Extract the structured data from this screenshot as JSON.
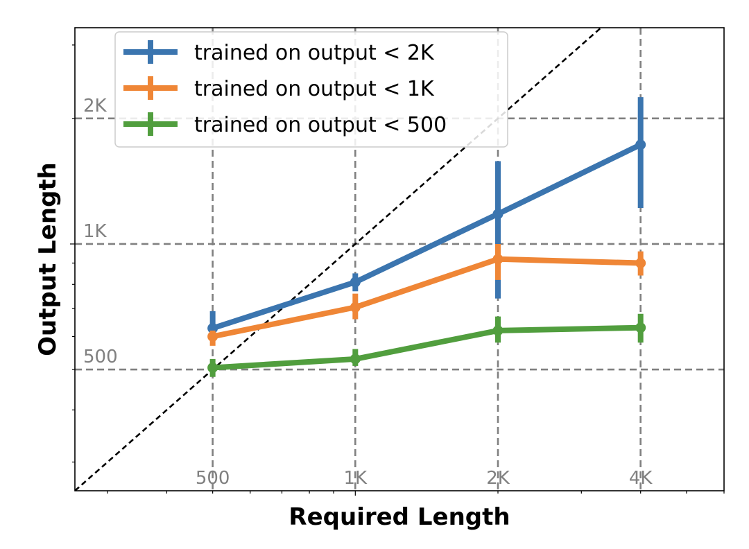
{
  "chart_data": {
    "type": "line",
    "xlabel": "Required Length",
    "ylabel": "Output Length",
    "x_scale": "log",
    "y_scale": "log",
    "xlim": [
      256,
      6000
    ],
    "ylim": [
      256,
      3300
    ],
    "grid": false,
    "legend_position": "top-left",
    "reference_lines": {
      "vertical": [
        {
          "value": 500,
          "label": "500"
        },
        {
          "value": 1000,
          "label": "1K"
        },
        {
          "value": 2000,
          "label": "2K"
        },
        {
          "value": 4000,
          "label": "4K"
        }
      ],
      "horizontal": [
        {
          "value": 500,
          "label": "500"
        },
        {
          "value": 1000,
          "label": "1K"
        },
        {
          "value": 2000,
          "label": "2K"
        }
      ],
      "diagonal": "y = x"
    },
    "x": [
      500,
      1000,
      2000,
      4000
    ],
    "series": [
      {
        "name": "trained on output < 2K",
        "color": "#3b75af",
        "values": [
          628,
          810,
          1180,
          1730
        ],
        "err_low": [
          590,
          770,
          740,
          1220
        ],
        "err_high": [
          690,
          850,
          1580,
          2250
        ]
      },
      {
        "name": "trained on output < 1K",
        "color": "#ef8636",
        "values": [
          600,
          705,
          920,
          900
        ],
        "err_low": [
          570,
          660,
          820,
          840
        ],
        "err_high": [
          620,
          760,
          1000,
          960
        ]
      },
      {
        "name": "trained on output < 500",
        "color": "#519e3e",
        "values": [
          505,
          530,
          620,
          630
        ],
        "err_low": [
          480,
          510,
          580,
          580
        ],
        "err_high": [
          530,
          560,
          670,
          680
        ]
      }
    ]
  }
}
